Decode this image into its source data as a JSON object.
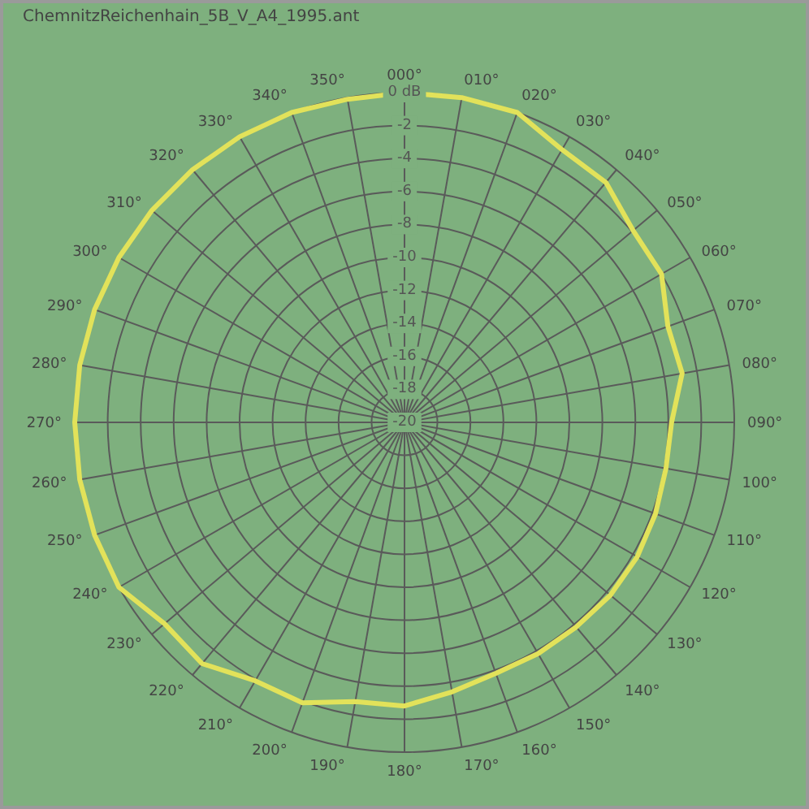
{
  "chart_data": {
    "type": "radar",
    "title": "ChemnitzReichenhain_5B_V_A4_1995.ant",
    "categories": [
      "000°",
      "010°",
      "020°",
      "030°",
      "040°",
      "050°",
      "060°",
      "070°",
      "080°",
      "090°",
      "100°",
      "110°",
      "120°",
      "130°",
      "140°",
      "150°",
      "160°",
      "170°",
      "180°",
      "190°",
      "200°",
      "210°",
      "220°",
      "230°",
      "240°",
      "250°",
      "260°",
      "270°",
      "280°",
      "290°",
      "300°",
      "310°",
      "320°",
      "330°",
      "340°",
      "350°"
    ],
    "series": [
      {
        "color": "#e2e25a",
        "values": [
          0,
          0,
          0,
          -0.9,
          -1,
          -1.9,
          -2,
          -3,
          -2.9,
          -3.8,
          -3.9,
          -3.8,
          -3.7,
          -3.7,
          -3.8,
          -3.8,
          -3.8,
          -3.4,
          -2.8,
          -2.8,
          -1.9,
          -1.9,
          -0.9,
          -1,
          0,
          0,
          0,
          0,
          0,
          0,
          0,
          0,
          0,
          0,
          0,
          -0.1
        ]
      }
    ],
    "ylim": [
      -20,
      0
    ],
    "yticks": [
      {
        "value": 0,
        "label": "0 dB"
      },
      -2,
      -4,
      -6,
      -8,
      -10,
      -12,
      -14,
      -16,
      -18,
      -20
    ],
    "grid": true,
    "marker": "none"
  }
}
